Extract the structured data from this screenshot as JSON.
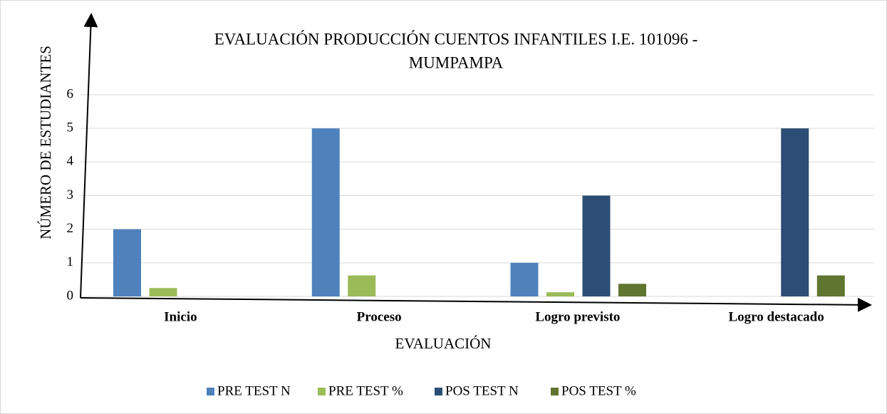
{
  "chart_data": {
    "type": "bar",
    "title": [
      "EVALUACIÓN PRODUCCIÓN CUENTOS INFANTILES I.E. 101096 -",
      "MUMPAMPA"
    ],
    "x_label": "EVALUACIÓN",
    "y_label": "NÚMERO DE ESTUDIANTES",
    "categories": [
      "Inicio",
      "Proceso",
      "Logro previsto",
      "Logro destacado"
    ],
    "series": [
      {
        "name": "PRE TEST N",
        "color": "#4f81bd",
        "values": [
          2,
          5,
          1,
          0
        ]
      },
      {
        "name": "PRE TEST %",
        "color": "#9bbb59",
        "values": [
          0.25,
          0.625,
          0.125,
          0
        ]
      },
      {
        "name": "POS TEST N",
        "color": "#2c4d75",
        "values": [
          0,
          0,
          3,
          5
        ]
      },
      {
        "name": "POS TEST %",
        "color": "#5f7530",
        "values": [
          0,
          0,
          0.375,
          0.625
        ]
      }
    ],
    "ylim": [
      0,
      6
    ],
    "yticks": [
      0,
      1,
      2,
      3,
      4,
      5,
      6
    ],
    "grid": true,
    "legend": "bottom"
  }
}
